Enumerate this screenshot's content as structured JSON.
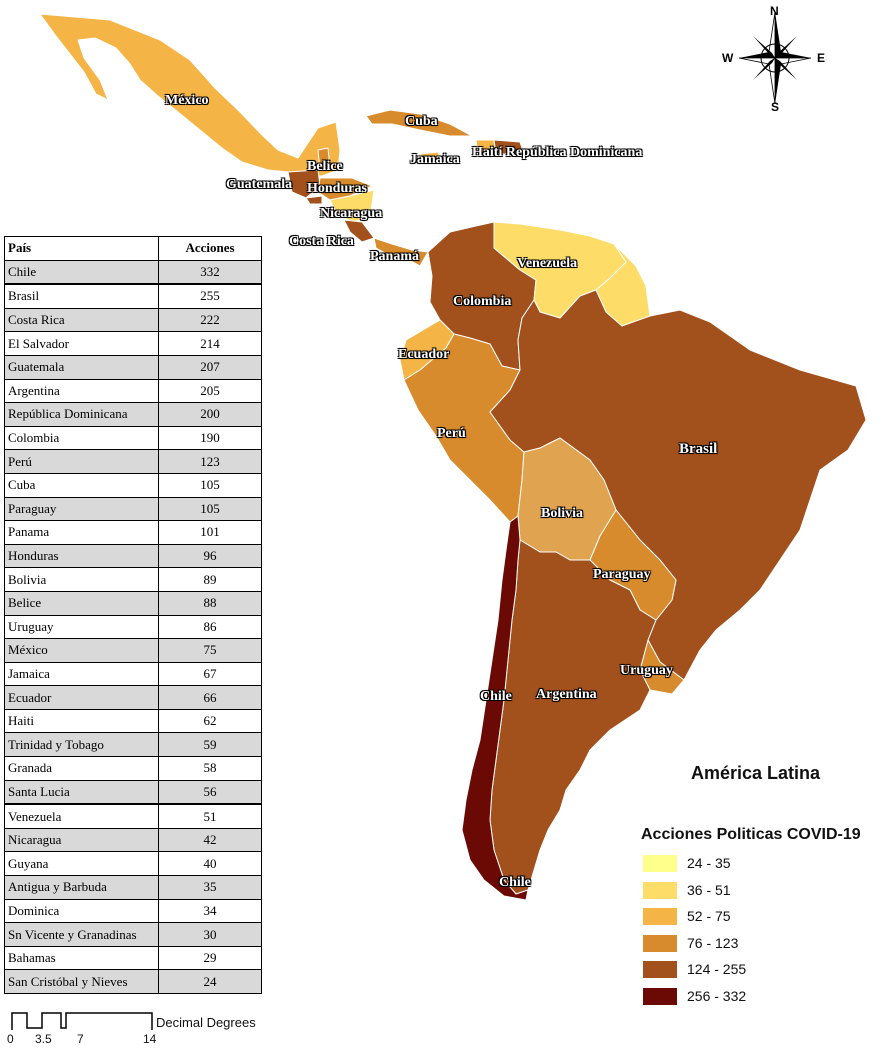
{
  "map": {
    "title": "América Latina",
    "legend": {
      "title": "Acciones Politicas COVID-19",
      "classes": [
        {
          "range": "24 - 35",
          "color": "#ffff8c"
        },
        {
          "range": "36 - 51",
          "color": "#fddd68"
        },
        {
          "range": "52 - 75",
          "color": "#f5b546"
        },
        {
          "range": "76 - 123",
          "color": "#d88b2c"
        },
        {
          "range": "124 - 255",
          "color": "#a2501c"
        },
        {
          "range": "256 - 332",
          "color": "#6b0a04"
        }
      ]
    },
    "compass": {
      "n": "N",
      "s": "S",
      "e": "E",
      "w": "W"
    },
    "scale": {
      "label": "Decimal Degrees",
      "ticks": [
        "0",
        "3.5",
        "7",
        "14"
      ]
    },
    "labels": {
      "mexico": "México",
      "cuba": "Cuba",
      "jamaica": "Jamaica",
      "haiti_rd": "Haití República Dominicana",
      "belice": "Belice",
      "guatemala": "Guatemala",
      "honduras": "Honduras",
      "nicaragua": "Nicaragua",
      "costa_rica": "Costa Rica",
      "panama": "Panamá",
      "venezuela": "Venezuela",
      "colombia": "Colombia",
      "ecuador": "Ecuador",
      "peru": "Perú",
      "brasil": "Brasil",
      "bolivia": "Bolivia",
      "paraguay": "Paraguay",
      "uruguay": "Uruguay",
      "chile": "Chile",
      "argentina": "Argentina",
      "chile_south": "Chile"
    }
  },
  "table": {
    "headers": [
      "País",
      "Acciones"
    ],
    "rows": [
      {
        "pais": "Chile",
        "acciones": "332"
      },
      {
        "pais": "Brasil",
        "acciones": "255"
      },
      {
        "pais": "Costa Rica",
        "acciones": "222"
      },
      {
        "pais": "El Salvador",
        "acciones": "214"
      },
      {
        "pais": "Guatemala",
        "acciones": "207"
      },
      {
        "pais": "Argentina",
        "acciones": "205"
      },
      {
        "pais": "República Dominicana",
        "acciones": "200"
      },
      {
        "pais": "Colombia",
        "acciones": "190"
      },
      {
        "pais": "Perú",
        "acciones": "123"
      },
      {
        "pais": "Cuba",
        "acciones": "105"
      },
      {
        "pais": "Paraguay",
        "acciones": "105"
      },
      {
        "pais": "Panama",
        "acciones": "101"
      },
      {
        "pais": "Honduras",
        "acciones": "96"
      },
      {
        "pais": "Bolivia",
        "acciones": "89"
      },
      {
        "pais": "Belice",
        "acciones": "88"
      },
      {
        "pais": "Uruguay",
        "acciones": "86"
      },
      {
        "pais": "México",
        "acciones": "75"
      },
      {
        "pais": "Jamaica",
        "acciones": "67"
      },
      {
        "pais": "Ecuador",
        "acciones": "66"
      },
      {
        "pais": "Haiti",
        "acciones": "62"
      },
      {
        "pais": "Trinidad y Tobago",
        "acciones": "59"
      },
      {
        "pais": "Granada",
        "acciones": "58"
      },
      {
        "pais": "Santa Lucia",
        "acciones": "56"
      },
      {
        "pais": "Venezuela",
        "acciones": "51"
      },
      {
        "pais": "Nicaragua",
        "acciones": "42"
      },
      {
        "pais": "Guyana",
        "acciones": "40"
      },
      {
        "pais": "Antigua y Barbuda",
        "acciones": "35"
      },
      {
        "pais": "Dominica",
        "acciones": "34"
      },
      {
        "pais": "Sn Vicente y Granadinas",
        "acciones": "30"
      },
      {
        "pais": "Bahamas",
        "acciones": "29"
      },
      {
        "pais": "San Cristóbal y Nieves",
        "acciones": "24"
      }
    ]
  }
}
